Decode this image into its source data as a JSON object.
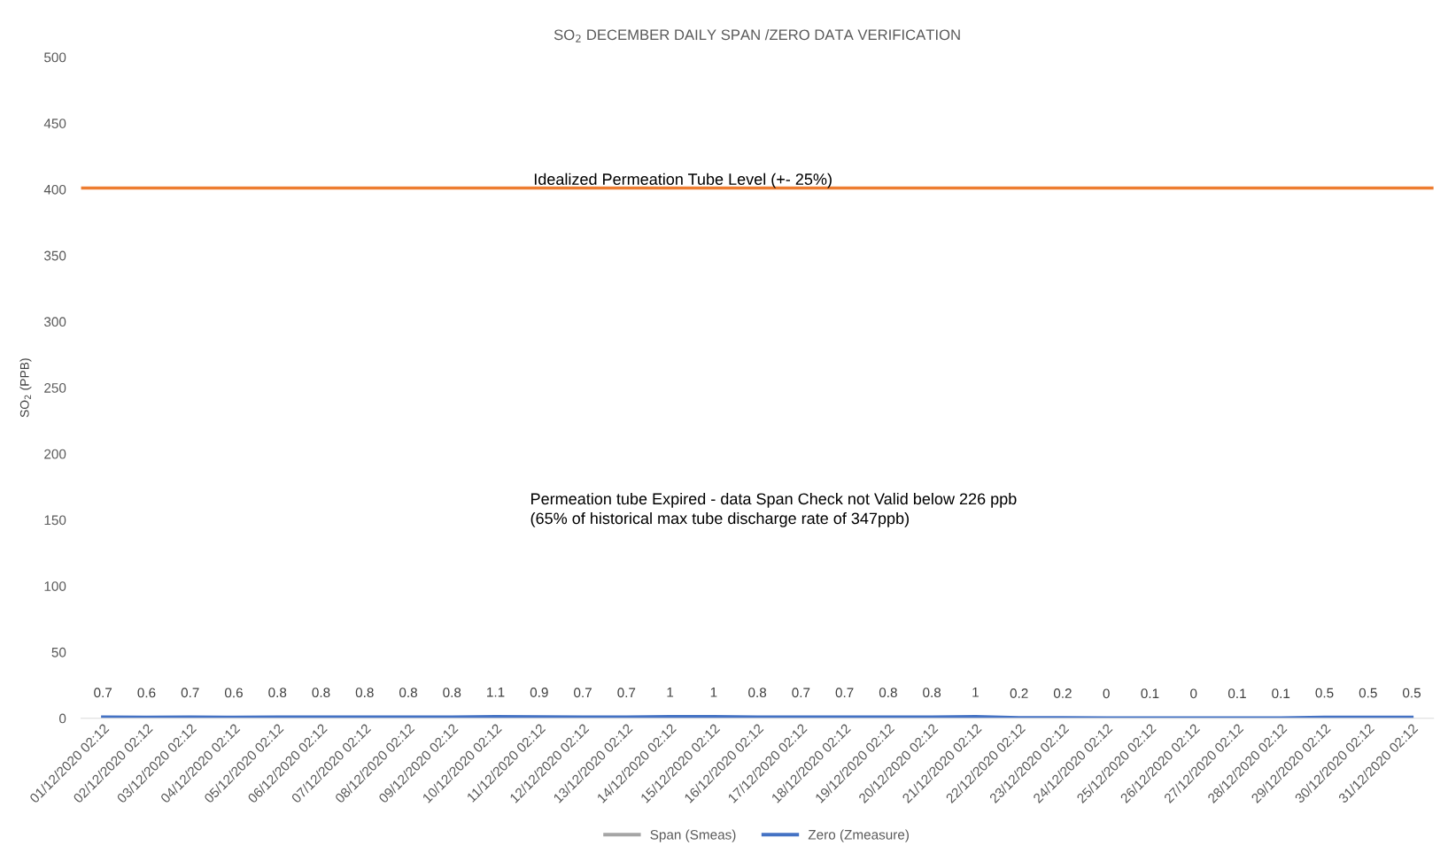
{
  "chart_data": {
    "type": "line",
    "title": "SO$_{2}$ DECEMBER DAILY SPAN /ZERO DATA VERIFICATION",
    "ylabel": "SO$_{2}$ (PPB)",
    "categories": [
      "01/12/2020 02:12",
      "02/12/2020 02:12",
      "03/12/2020 02:12",
      "04/12/2020 02:12",
      "05/12/2020 02:12",
      "06/12/2020 02:12",
      "07/12/2020 02:12",
      "08/12/2020 02:12",
      "09/12/2020 02:12",
      "10/12/2020 02:12",
      "11/12/2020 02:12",
      "12/12/2020 02:12",
      "13/12/2020 02:12",
      "14/12/2020 02:12",
      "15/12/2020 02:12",
      "16/12/2020 02:12",
      "17/12/2020 02:12",
      "18/12/2020 02:12",
      "19/12/2020 02:12",
      "20/12/2020 02:12",
      "21/12/2020 02:12",
      "22/12/2020 02:12",
      "23/12/2020 02:12",
      "24/12/2020 02:12",
      "25/12/2020 02:12",
      "26/12/2020 02:12",
      "27/12/2020 02:12",
      "28/12/2020 02:12",
      "29/12/2020 02:12",
      "30/12/2020 02:12",
      "31/12/2020 02:12"
    ],
    "series": [
      {
        "name": "Span (Smeas)",
        "color": "#a5a5a5",
        "values": [
          null,
          null,
          null,
          null,
          null,
          null,
          null,
          null,
          null,
          null,
          null,
          null,
          null,
          null,
          null,
          null,
          null,
          null,
          null,
          null,
          null,
          null,
          null,
          null,
          null,
          null,
          null,
          null,
          null,
          null,
          null
        ]
      },
      {
        "name": "Zero (Zmeasure)",
        "color": "#4472c4",
        "values": [
          0.7,
          0.6,
          0.7,
          0.6,
          0.8,
          0.8,
          0.8,
          0.8,
          0.8,
          1.1,
          0.9,
          0.7,
          0.7,
          1,
          1,
          0.8,
          0.7,
          0.7,
          0.8,
          0.8,
          1,
          0.2,
          0.2,
          0,
          0.1,
          0,
          0.1,
          0.1,
          0.5,
          0.5,
          0.5
        ],
        "value_labels": [
          "0.7",
          "0.6",
          "0.7",
          "0.6",
          "0.8",
          "0.8",
          "0.8",
          "0.8",
          "0.8",
          "1.1",
          "0.9",
          "0.7",
          "0.7",
          "1",
          "1",
          "0.8",
          "0.7",
          "0.7",
          "0.8",
          "0.8",
          "1",
          "0.2",
          "0.2",
          "0",
          "0.1",
          "0",
          "0.1",
          "0.1",
          "0.5",
          "0.5",
          "0.5"
        ]
      }
    ],
    "ylim": [
      0,
      500
    ],
    "yticks": [
      0,
      50,
      100,
      150,
      200,
      250,
      300,
      350,
      400,
      450,
      500
    ],
    "ref_lines": [
      {
        "axis": "y",
        "value": 401,
        "label": "Idealized Permeation Tube Level (+- 25%)",
        "color": "#ed7d31"
      }
    ],
    "annotations": [
      "Permeation tube Expired - data Span Check not Valid below 226 ppb\n(65% of historical max tube discharge rate of 347ppb)"
    ],
    "grid": false,
    "legend": "bottom",
    "marker": "none",
    "line_style": "solid"
  }
}
